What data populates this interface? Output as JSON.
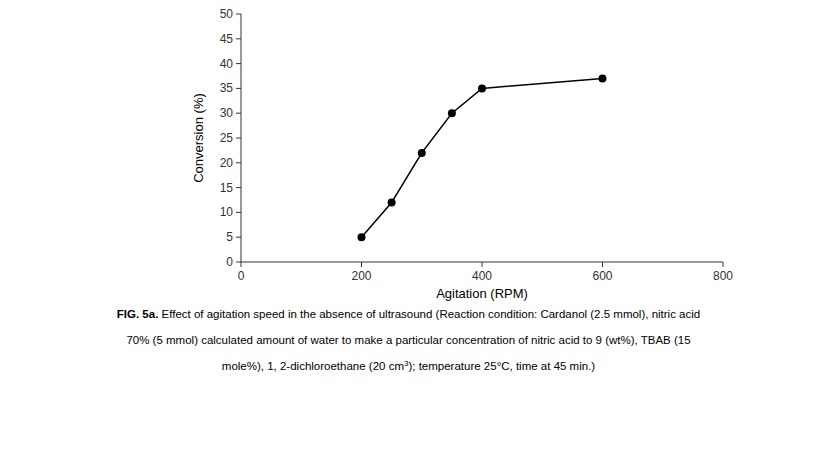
{
  "chart_data": {
    "type": "line",
    "x": [
      200,
      250,
      300,
      350,
      400,
      600
    ],
    "y": [
      5,
      12,
      22,
      30,
      35,
      37
    ],
    "xlabel": "Agitation (RPM)",
    "ylabel": "Conversion (%)",
    "xlim": [
      0,
      800
    ],
    "ylim": [
      0,
      50
    ],
    "xticks": [
      0,
      200,
      400,
      600,
      800
    ],
    "yticks": [
      0,
      5,
      10,
      15,
      20,
      25,
      30,
      35,
      40,
      45,
      50
    ],
    "color": "#000000",
    "marker": "circle",
    "grid": false,
    "annotations": [
      [
        "FIG. 5a.",
        " Effect of agitation speed in the absence of ultrasound (Reaction condition: Cardanol (2.5 mmol), nitric acid"
      ],
      [
        "70% (5 mmol) calculated amount of water to make a particular concentration of nitric acid to 9 (wt%), TBAB (15"
      ],
      [
        "mole%), 1, 2-dichloroethane (20 cm",
        "3",
        "); temperature 25°C, time at 45 min.)"
      ]
    ]
  }
}
